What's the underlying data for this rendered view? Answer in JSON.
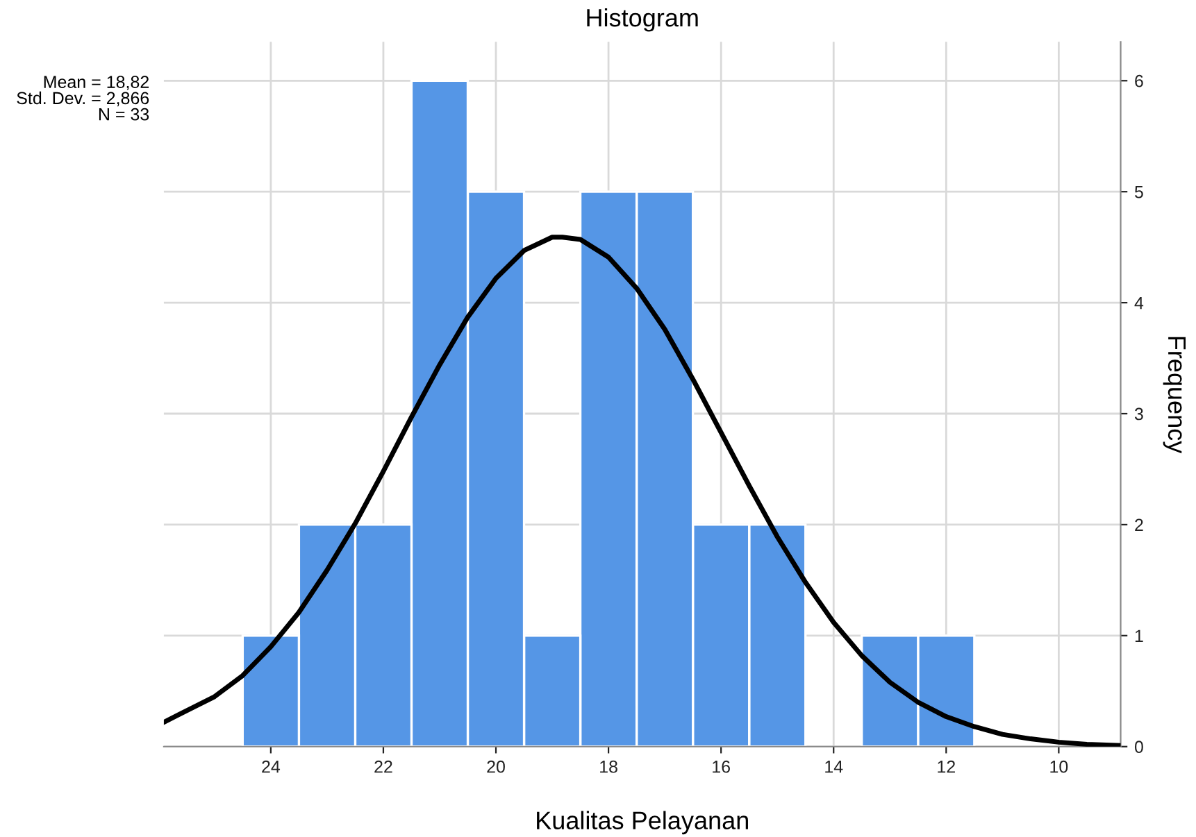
{
  "chart_data": {
    "type": "histogram",
    "title": "Histogram",
    "xlabel": "Kualitas Pelayanan",
    "ylabel": "Frequency",
    "bins": [
      11.5,
      12.5,
      13.5,
      14.5,
      15.5,
      16.5,
      17.5,
      18.5,
      19.5,
      20.5,
      21.5,
      22.5,
      23.5,
      24.5
    ],
    "values": [
      1,
      1,
      0,
      2,
      2,
      5,
      5,
      1,
      5,
      6,
      2,
      2,
      1
    ],
    "color": "#5596e6",
    "series": [
      {
        "type": "line",
        "color": "#000000",
        "x": [
          25.9,
          25,
          24.5,
          24,
          23.5,
          23,
          22.5,
          22,
          21.5,
          21,
          20.5,
          20,
          19.5,
          19,
          18.82,
          18.5,
          18,
          17.5,
          17,
          16.5,
          16,
          15.5,
          15,
          14.5,
          14,
          13.5,
          13,
          12.5,
          12,
          11.5,
          11,
          10.5,
          10,
          9.5,
          8.9
        ],
        "values": [
          0.22,
          0.45,
          0.64,
          0.9,
          1.21,
          1.59,
          2.01,
          2.48,
          2.97,
          3.44,
          3.87,
          4.22,
          4.47,
          4.59,
          4.59,
          4.57,
          4.41,
          4.13,
          3.76,
          3.31,
          2.83,
          2.35,
          1.89,
          1.48,
          1.12,
          0.82,
          0.58,
          0.4,
          0.27,
          0.18,
          0.11,
          0.07,
          0.04,
          0.02,
          0.01
        ]
      }
    ],
    "xlim": [
      25.9,
      8.9
    ],
    "xticks": [
      24,
      22,
      20,
      18,
      16,
      14,
      12,
      10
    ],
    "ylim": [
      0,
      6.35
    ],
    "yticks": [
      0,
      1,
      2,
      3,
      4,
      5,
      6
    ],
    "grid": true,
    "legend": false,
    "annotations": [
      "Mean = 18,82\nStd. Dev. = 2,866\nN = 33"
    ]
  }
}
